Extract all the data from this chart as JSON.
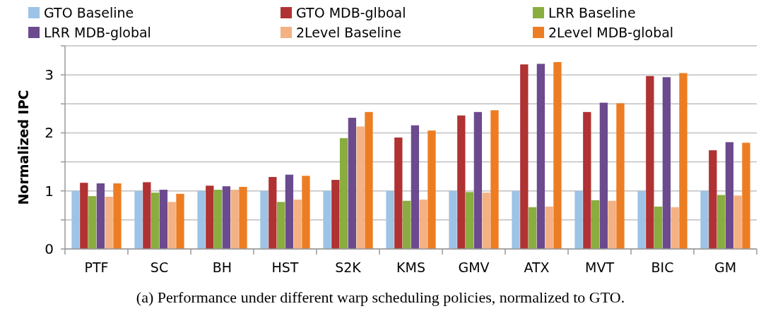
{
  "chart_data": {
    "type": "bar",
    "ylabel": "Normalized IPC",
    "categories": [
      "PTF",
      "SC",
      "BH",
      "HST",
      "S2K",
      "KMS",
      "GMV",
      "ATX",
      "MVT",
      "BIC",
      "GM"
    ],
    "series": [
      {
        "name": "GTO Baseline",
        "color": "#9dc3e6",
        "values": [
          1,
          1,
          1,
          1,
          1,
          1,
          1,
          1,
          1,
          1,
          1
        ]
      },
      {
        "name": "GTO MDB-glboal",
        "color": "#b03232",
        "values": [
          1.14,
          1.15,
          1.09,
          1.24,
          1.19,
          1.92,
          2.3,
          3.18,
          2.36,
          2.98,
          1.7
        ]
      },
      {
        "name": "LRR Baseline",
        "color": "#8aad3f",
        "values": [
          0.91,
          0.97,
          1.02,
          0.81,
          1.91,
          0.83,
          0.98,
          0.72,
          0.84,
          0.73,
          0.93
        ]
      },
      {
        "name": "LRR MDB-global",
        "color": "#6b4a8e",
        "values": [
          1.13,
          1.02,
          1.08,
          1.28,
          2.26,
          2.13,
          2.36,
          3.19,
          2.52,
          2.96,
          1.84
        ]
      },
      {
        "name": "2Level Baseline",
        "color": "#f4b183",
        "values": [
          0.9,
          0.81,
          1.02,
          0.85,
          2.11,
          0.85,
          0.97,
          0.73,
          0.83,
          0.72,
          0.92
        ]
      },
      {
        "name": "2Level MDB-global",
        "color": "#ed7d22",
        "values": [
          1.13,
          0.95,
          1.07,
          1.26,
          2.36,
          2.04,
          2.39,
          3.22,
          2.51,
          3.03,
          1.83
        ]
      }
    ],
    "ylim": [
      0,
      3.5
    ],
    "yticks": [
      0,
      {
        "value": 0.5,
        "label": null
      },
      1,
      {
        "value": 1.5,
        "label": null
      },
      2,
      {
        "value": 2.5,
        "label": null
      },
      3,
      {
        "value": 3.5,
        "label": null
      }
    ],
    "grid": "y",
    "legend": "top",
    "annotations": [
      "(a) Performance under different warp scheduling policies, normalized to GTO."
    ]
  }
}
